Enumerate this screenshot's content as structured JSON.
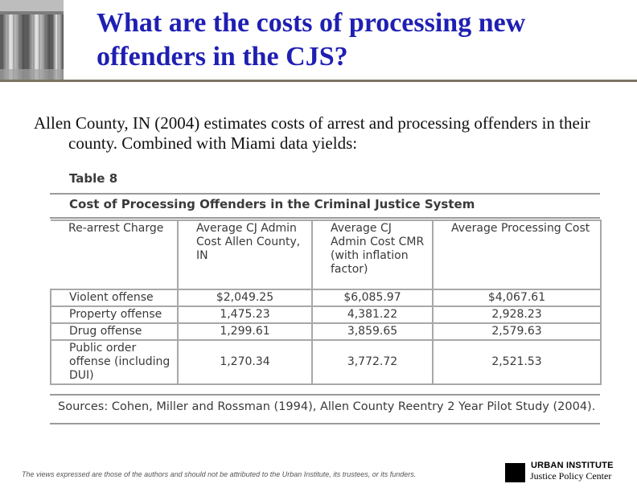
{
  "slide": {
    "title_line1": "What are the costs of processing new",
    "title_line2": "offenders in the CJS?",
    "intro_text": "Allen County, IN (2004) estimates costs of arrest and processing offenders in their county. Combined with Miami data yields:"
  },
  "table": {
    "label": "Table 8",
    "title": "Cost of Processing Offenders in the Criminal Justice System",
    "headers": [
      "Re-arrest Charge",
      "Average CJ Admin Cost Allen County, IN",
      "Average CJ Admin Cost CMR (with inflation factor)",
      "Average Processing Cost"
    ],
    "rows": [
      {
        "charge": "Violent offense",
        "allen": "$2,049.25",
        "cmr": "$6,085.97",
        "processing": "$4,067.61"
      },
      {
        "charge": "Property offense",
        "allen": "1,475.23",
        "cmr": "4,381.22",
        "processing": "2,928.23"
      },
      {
        "charge": "Drug offense",
        "allen": "1,299.61",
        "cmr": "3,859.65",
        "processing": "2,579.63"
      },
      {
        "charge": "Public order offense (including DUI)",
        "allen": "1,270.34",
        "cmr": "3,772.72",
        "processing": "2,521.53"
      }
    ],
    "sources": "Sources: Cohen, Miller and Rossman (1994), Allen County Reentry 2 Year Pilot Study (2004)."
  },
  "footer": {
    "disclaimer": "The views expressed are those of the authors and should not be attributed to the Urban Institute, its trustees, or its funders.",
    "org_name": "URBAN INSTITUTE",
    "org_center": "Justice Policy Center"
  },
  "colors": {
    "title": "#1f1fb3",
    "rule": "#7b7461",
    "table_text": "#3a3a3a"
  },
  "icons": {
    "header_image": "classical-columns-image",
    "logo": "urban-institute-logo-square"
  }
}
